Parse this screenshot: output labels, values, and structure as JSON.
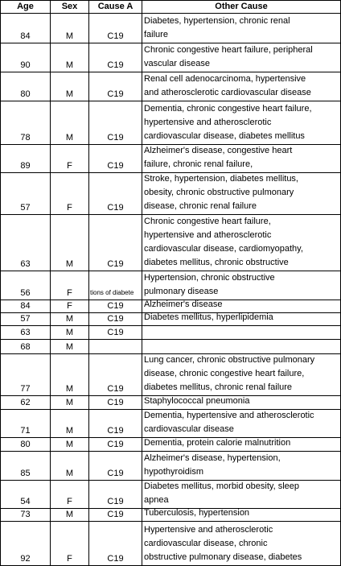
{
  "headers": {
    "age": "Age",
    "sex": "Sex",
    "cause_a": "Cause A",
    "other_cause": "Other Cause"
  },
  "rows": [
    {
      "age": "84",
      "sex": "M",
      "cause_a": "C19",
      "other": "Diabetes, hypertension, chronic renal\nfailure"
    },
    {
      "age": "90",
      "sex": "M",
      "cause_a": "C19",
      "other": "Chronic congestive heart failure, peripheral\nvascular disease"
    },
    {
      "age": "80",
      "sex": "M",
      "cause_a": "C19",
      "other": "Renal cell adenocarcinoma, hypertensive\nand atherosclerotic cardiovascular disease"
    },
    {
      "age": "78",
      "sex": "M",
      "cause_a": "C19",
      "other": "Dementia, chronic congestive heart failure,\nhypertensive and atherosclerotic\ncardiovascular disease, diabetes mellitus"
    },
    {
      "age": "89",
      "sex": "F",
      "cause_a": "C19",
      "other": "Alzheimer's disease, congestive heart\nfailure, chronic renal failure,"
    },
    {
      "age": "57",
      "sex": "F",
      "cause_a": "C19",
      "other": "Stroke, hypertension, diabetes mellitus,\nobesity, chronic obstructive pulmonary\ndisease, chronic renal failure"
    },
    {
      "age": "63",
      "sex": "M",
      "cause_a": "C19",
      "other": "Chronic congestive heart failure,\nhypertensive and atherosclerotic\ncardiovascular disease, cardiomyopathy,\ndiabetes mellitus, chronic obstructive"
    },
    {
      "age": "56",
      "sex": "F",
      "cause_a": "",
      "cause_a_overflow": "tions of diabete",
      "other": "Hypertension, chronic obstructive\npulmonary disease"
    },
    {
      "age": "84",
      "sex": "F",
      "cause_a": "C19",
      "other": "Alzheimer's disease"
    },
    {
      "age": "57",
      "sex": "M",
      "cause_a": "C19",
      "other": "Diabetes mellitus, hyperlipidemia"
    },
    {
      "age": "63",
      "sex": "M",
      "cause_a": "C19",
      "other": ""
    },
    {
      "age": "68",
      "sex": "M",
      "cause_a": "",
      "other": ""
    },
    {
      "age": "77",
      "sex": "M",
      "cause_a": "C19",
      "other": "Lung cancer, chronic obstructive pulmonary\ndisease, chronic congestive heart failure,\ndiabetes mellitus, chronic renal failure"
    },
    {
      "age": "62",
      "sex": "M",
      "cause_a": "C19",
      "other": "Staphylococcal pneumonia"
    },
    {
      "age": "71",
      "sex": "M",
      "cause_a": "C19",
      "other": "Dementia, hypertensive and atherosclerotic\ncardiovascular disease"
    },
    {
      "age": "80",
      "sex": "M",
      "cause_a": "C19",
      "other": "Dementia, protein calorie malnutrition"
    },
    {
      "age": "85",
      "sex": "M",
      "cause_a": "C19",
      "other": "Alzheimer's disease, hypertension,\nhypothyroidism"
    },
    {
      "age": "54",
      "sex": "F",
      "cause_a": "C19",
      "other": "Diabetes mellitus, morbid obesity, sleep\napnea"
    },
    {
      "age": "73",
      "sex": "M",
      "cause_a": "C19",
      "other": "Tuberculosis, hypertension"
    },
    {
      "age": "92",
      "sex": "F",
      "cause_a": "C19",
      "other": "Hypertensive and atherosclerotic\ncardiovascular disease, chronic\nobstructive pulmonary disease, diabetes"
    }
  ]
}
